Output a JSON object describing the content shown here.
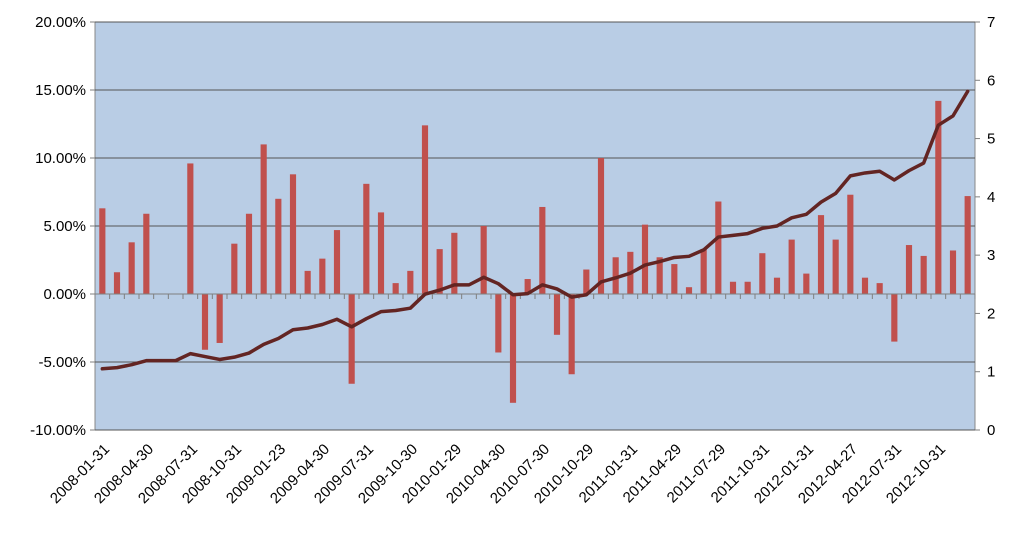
{
  "chart_data": {
    "type": "bar",
    "title": "",
    "xlabel": "",
    "ylabel": "",
    "colors": {
      "plot_background": "#b9cde5",
      "bar": "#c0504d",
      "line": "#632523",
      "gridline": "#555555"
    },
    "grid": true,
    "legend": "none",
    "y_left": {
      "range": [
        -0.1,
        0.2
      ],
      "ticks": [
        -0.1,
        -0.05,
        0.0,
        0.05,
        0.1,
        0.15,
        0.2
      ],
      "tick_labels": [
        "-10.00%",
        "-5.00%",
        "0.00%",
        "5.00%",
        "10.00%",
        "15.00%",
        "20.00%"
      ]
    },
    "y_right": {
      "range": [
        0,
        7
      ],
      "ticks": [
        0,
        1,
        2,
        3,
        4,
        5,
        6,
        7
      ],
      "tick_labels": [
        "0",
        "1",
        "2",
        "3",
        "4",
        "5",
        "6",
        "7"
      ]
    },
    "x_tick_labels": [
      {
        "label": "2008-01-31",
        "index": 0
      },
      {
        "label": "2008-04-30",
        "index": 3
      },
      {
        "label": "2008-07-31",
        "index": 6
      },
      {
        "label": "2008-10-31",
        "index": 9
      },
      {
        "label": "2009-01-23",
        "index": 12
      },
      {
        "label": "2009-04-30",
        "index": 15
      },
      {
        "label": "2009-07-31",
        "index": 18
      },
      {
        "label": "2009-10-30",
        "index": 21
      },
      {
        "label": "2010-01-29",
        "index": 24
      },
      {
        "label": "2010-04-30",
        "index": 27
      },
      {
        "label": "2010-07-30",
        "index": 30
      },
      {
        "label": "2010-10-29",
        "index": 33
      },
      {
        "label": "2011-01-31",
        "index": 36
      },
      {
        "label": "2011-04-29",
        "index": 39
      },
      {
        "label": "2011-07-29",
        "index": 42
      },
      {
        "label": "2011-10-31",
        "index": 45
      },
      {
        "label": "2012-01-31",
        "index": 48
      },
      {
        "label": "2012-04-27",
        "index": 51
      },
      {
        "label": "2012-07-31",
        "index": 54
      },
      {
        "label": "2012-10-31",
        "index": 57
      }
    ],
    "series": [
      {
        "type": "bar",
        "axis": "left",
        "values": [
          0.063,
          0.016,
          0.038,
          0.059,
          0.0,
          0.0,
          0.096,
          -0.041,
          -0.036,
          0.037,
          0.059,
          0.11,
          0.07,
          0.088,
          0.017,
          0.026,
          0.047,
          -0.066,
          0.081,
          0.06,
          0.008,
          0.017,
          0.124,
          0.033,
          0.045,
          0.0,
          0.05,
          -0.043,
          -0.08,
          0.011,
          0.064,
          -0.03,
          -0.059,
          0.018,
          0.1,
          0.027,
          0.031,
          0.051,
          0.027,
          0.022,
          0.005,
          0.033,
          0.068,
          0.009,
          0.009,
          0.03,
          0.012,
          0.04,
          0.015,
          0.058,
          0.04,
          0.073,
          0.012,
          0.008,
          -0.035,
          0.036,
          0.028,
          0.142,
          0.032,
          0.072
        ]
      },
      {
        "type": "line",
        "axis": "right",
        "values": [
          1.05,
          1.07,
          1.12,
          1.19,
          1.19,
          1.19,
          1.31,
          1.26,
          1.21,
          1.25,
          1.32,
          1.47,
          1.57,
          1.72,
          1.75,
          1.81,
          1.9,
          1.77,
          1.91,
          2.03,
          2.05,
          2.09,
          2.33,
          2.4,
          2.49,
          2.49,
          2.62,
          2.51,
          2.32,
          2.34,
          2.49,
          2.42,
          2.28,
          2.32,
          2.54,
          2.61,
          2.69,
          2.83,
          2.89,
          2.96,
          2.98,
          3.09,
          3.31,
          3.34,
          3.37,
          3.46,
          3.5,
          3.64,
          3.7,
          3.91,
          4.06,
          4.36,
          4.41,
          4.44,
          4.29,
          4.45,
          4.58,
          5.23,
          5.39,
          5.81
        ]
      }
    ]
  }
}
